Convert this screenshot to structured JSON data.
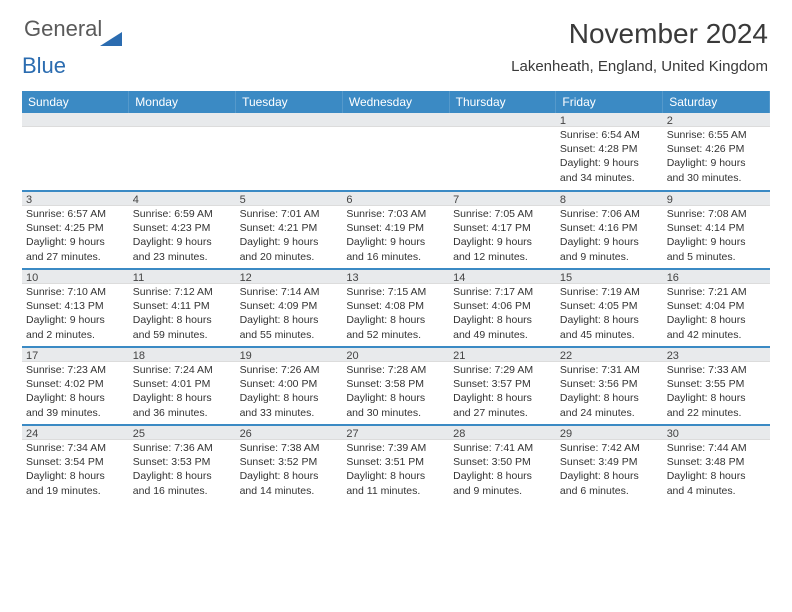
{
  "brand": {
    "gray": "General",
    "blue": "Blue"
  },
  "title": "November 2024",
  "location": "Lakenheath, England, United Kingdom",
  "colors": {
    "header_bg": "#3b8ac4",
    "band_bg": "#e8eaec",
    "divider": "#3b8ac4",
    "text": "#333333",
    "title_text": "#3a3a3a",
    "logo_gray": "#5a5a5a",
    "logo_blue": "#2b6cb0"
  },
  "dayHeaders": [
    "Sunday",
    "Monday",
    "Tuesday",
    "Wednesday",
    "Thursday",
    "Friday",
    "Saturday"
  ],
  "weeks": [
    [
      {
        "date": "",
        "sunrise": "",
        "sunset": "",
        "daylight": ""
      },
      {
        "date": "",
        "sunrise": "",
        "sunset": "",
        "daylight": ""
      },
      {
        "date": "",
        "sunrise": "",
        "sunset": "",
        "daylight": ""
      },
      {
        "date": "",
        "sunrise": "",
        "sunset": "",
        "daylight": ""
      },
      {
        "date": "",
        "sunrise": "",
        "sunset": "",
        "daylight": ""
      },
      {
        "date": "1",
        "sunrise": "Sunrise: 6:54 AM",
        "sunset": "Sunset: 4:28 PM",
        "daylight": "Daylight: 9 hours and 34 minutes."
      },
      {
        "date": "2",
        "sunrise": "Sunrise: 6:55 AM",
        "sunset": "Sunset: 4:26 PM",
        "daylight": "Daylight: 9 hours and 30 minutes."
      }
    ],
    [
      {
        "date": "3",
        "sunrise": "Sunrise: 6:57 AM",
        "sunset": "Sunset: 4:25 PM",
        "daylight": "Daylight: 9 hours and 27 minutes."
      },
      {
        "date": "4",
        "sunrise": "Sunrise: 6:59 AM",
        "sunset": "Sunset: 4:23 PM",
        "daylight": "Daylight: 9 hours and 23 minutes."
      },
      {
        "date": "5",
        "sunrise": "Sunrise: 7:01 AM",
        "sunset": "Sunset: 4:21 PM",
        "daylight": "Daylight: 9 hours and 20 minutes."
      },
      {
        "date": "6",
        "sunrise": "Sunrise: 7:03 AM",
        "sunset": "Sunset: 4:19 PM",
        "daylight": "Daylight: 9 hours and 16 minutes."
      },
      {
        "date": "7",
        "sunrise": "Sunrise: 7:05 AM",
        "sunset": "Sunset: 4:17 PM",
        "daylight": "Daylight: 9 hours and 12 minutes."
      },
      {
        "date": "8",
        "sunrise": "Sunrise: 7:06 AM",
        "sunset": "Sunset: 4:16 PM",
        "daylight": "Daylight: 9 hours and 9 minutes."
      },
      {
        "date": "9",
        "sunrise": "Sunrise: 7:08 AM",
        "sunset": "Sunset: 4:14 PM",
        "daylight": "Daylight: 9 hours and 5 minutes."
      }
    ],
    [
      {
        "date": "10",
        "sunrise": "Sunrise: 7:10 AM",
        "sunset": "Sunset: 4:13 PM",
        "daylight": "Daylight: 9 hours and 2 minutes."
      },
      {
        "date": "11",
        "sunrise": "Sunrise: 7:12 AM",
        "sunset": "Sunset: 4:11 PM",
        "daylight": "Daylight: 8 hours and 59 minutes."
      },
      {
        "date": "12",
        "sunrise": "Sunrise: 7:14 AM",
        "sunset": "Sunset: 4:09 PM",
        "daylight": "Daylight: 8 hours and 55 minutes."
      },
      {
        "date": "13",
        "sunrise": "Sunrise: 7:15 AM",
        "sunset": "Sunset: 4:08 PM",
        "daylight": "Daylight: 8 hours and 52 minutes."
      },
      {
        "date": "14",
        "sunrise": "Sunrise: 7:17 AM",
        "sunset": "Sunset: 4:06 PM",
        "daylight": "Daylight: 8 hours and 49 minutes."
      },
      {
        "date": "15",
        "sunrise": "Sunrise: 7:19 AM",
        "sunset": "Sunset: 4:05 PM",
        "daylight": "Daylight: 8 hours and 45 minutes."
      },
      {
        "date": "16",
        "sunrise": "Sunrise: 7:21 AM",
        "sunset": "Sunset: 4:04 PM",
        "daylight": "Daylight: 8 hours and 42 minutes."
      }
    ],
    [
      {
        "date": "17",
        "sunrise": "Sunrise: 7:23 AM",
        "sunset": "Sunset: 4:02 PM",
        "daylight": "Daylight: 8 hours and 39 minutes."
      },
      {
        "date": "18",
        "sunrise": "Sunrise: 7:24 AM",
        "sunset": "Sunset: 4:01 PM",
        "daylight": "Daylight: 8 hours and 36 minutes."
      },
      {
        "date": "19",
        "sunrise": "Sunrise: 7:26 AM",
        "sunset": "Sunset: 4:00 PM",
        "daylight": "Daylight: 8 hours and 33 minutes."
      },
      {
        "date": "20",
        "sunrise": "Sunrise: 7:28 AM",
        "sunset": "Sunset: 3:58 PM",
        "daylight": "Daylight: 8 hours and 30 minutes."
      },
      {
        "date": "21",
        "sunrise": "Sunrise: 7:29 AM",
        "sunset": "Sunset: 3:57 PM",
        "daylight": "Daylight: 8 hours and 27 minutes."
      },
      {
        "date": "22",
        "sunrise": "Sunrise: 7:31 AM",
        "sunset": "Sunset: 3:56 PM",
        "daylight": "Daylight: 8 hours and 24 minutes."
      },
      {
        "date": "23",
        "sunrise": "Sunrise: 7:33 AM",
        "sunset": "Sunset: 3:55 PM",
        "daylight": "Daylight: 8 hours and 22 minutes."
      }
    ],
    [
      {
        "date": "24",
        "sunrise": "Sunrise: 7:34 AM",
        "sunset": "Sunset: 3:54 PM",
        "daylight": "Daylight: 8 hours and 19 minutes."
      },
      {
        "date": "25",
        "sunrise": "Sunrise: 7:36 AM",
        "sunset": "Sunset: 3:53 PM",
        "daylight": "Daylight: 8 hours and 16 minutes."
      },
      {
        "date": "26",
        "sunrise": "Sunrise: 7:38 AM",
        "sunset": "Sunset: 3:52 PM",
        "daylight": "Daylight: 8 hours and 14 minutes."
      },
      {
        "date": "27",
        "sunrise": "Sunrise: 7:39 AM",
        "sunset": "Sunset: 3:51 PM",
        "daylight": "Daylight: 8 hours and 11 minutes."
      },
      {
        "date": "28",
        "sunrise": "Sunrise: 7:41 AM",
        "sunset": "Sunset: 3:50 PM",
        "daylight": "Daylight: 8 hours and 9 minutes."
      },
      {
        "date": "29",
        "sunrise": "Sunrise: 7:42 AM",
        "sunset": "Sunset: 3:49 PM",
        "daylight": "Daylight: 8 hours and 6 minutes."
      },
      {
        "date": "30",
        "sunrise": "Sunrise: 7:44 AM",
        "sunset": "Sunset: 3:48 PM",
        "daylight": "Daylight: 8 hours and 4 minutes."
      }
    ]
  ]
}
